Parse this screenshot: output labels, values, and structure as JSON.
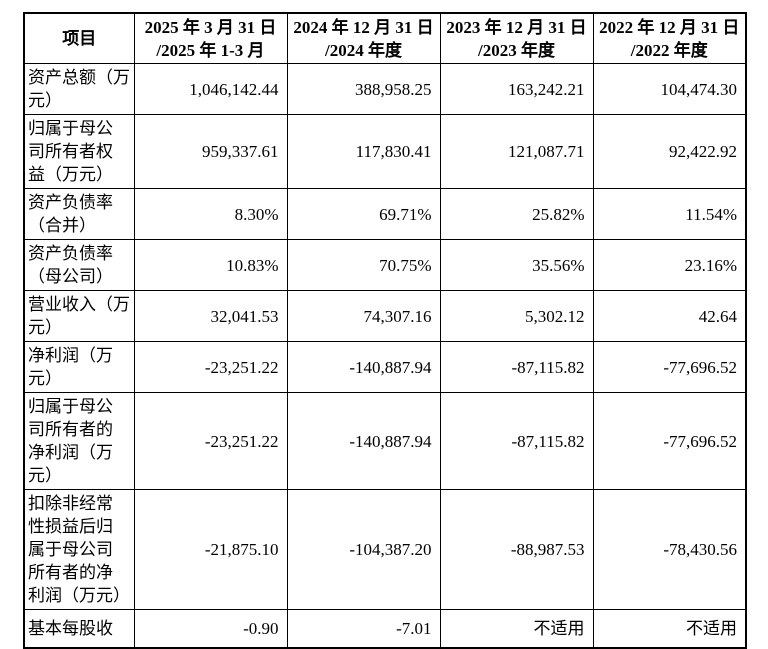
{
  "colors": {
    "border": "#000000",
    "text": "#000000",
    "background": "#ffffff"
  },
  "table": {
    "columns": [
      "项目",
      "2025 年 3 月 31 日\n/2025 年 1-3 月",
      "2024 年 12 月 31 日\n/2024 年度",
      "2023 年 12 月 31 日\n/2023 年度",
      "2022 年 12 月 31 日\n/2022 年度"
    ],
    "rows": [
      {
        "label": "资产总额（万\n元）",
        "values": [
          "1,046,142.44",
          "388,958.25",
          "163,242.21",
          "104,474.30"
        ]
      },
      {
        "label": "归属于母公\n司所有者权\n益（万元）",
        "values": [
          "959,337.61",
          "117,830.41",
          "121,087.71",
          "92,422.92"
        ]
      },
      {
        "label": "资产负债率\n（合并）",
        "values": [
          "8.30%",
          "69.71%",
          "25.82%",
          "11.54%"
        ]
      },
      {
        "label": "资产负债率\n（母公司）",
        "values": [
          "10.83%",
          "70.75%",
          "35.56%",
          "23.16%"
        ]
      },
      {
        "label": "营业收入（万\n元）",
        "values": [
          "32,041.53",
          "74,307.16",
          "5,302.12",
          "42.64"
        ]
      },
      {
        "label": "净利润（万\n元）",
        "values": [
          "-23,251.22",
          "-140,887.94",
          "-87,115.82",
          "-77,696.52"
        ]
      },
      {
        "label": "归属于母公\n司所有者的\n净利润（万\n元）",
        "values": [
          "-23,251.22",
          "-140,887.94",
          "-87,115.82",
          "-77,696.52"
        ]
      },
      {
        "label": "扣除非经常\n性损益后归\n属于母公司\n所有者的净\n利润（万元）",
        "values": [
          "-21,875.10",
          "-104,387.20",
          "-88,987.53",
          "-78,430.56"
        ]
      },
      {
        "label": "基本每股收",
        "values": [
          "-0.90",
          "-7.01",
          "不适用",
          "不适用"
        ]
      }
    ]
  }
}
